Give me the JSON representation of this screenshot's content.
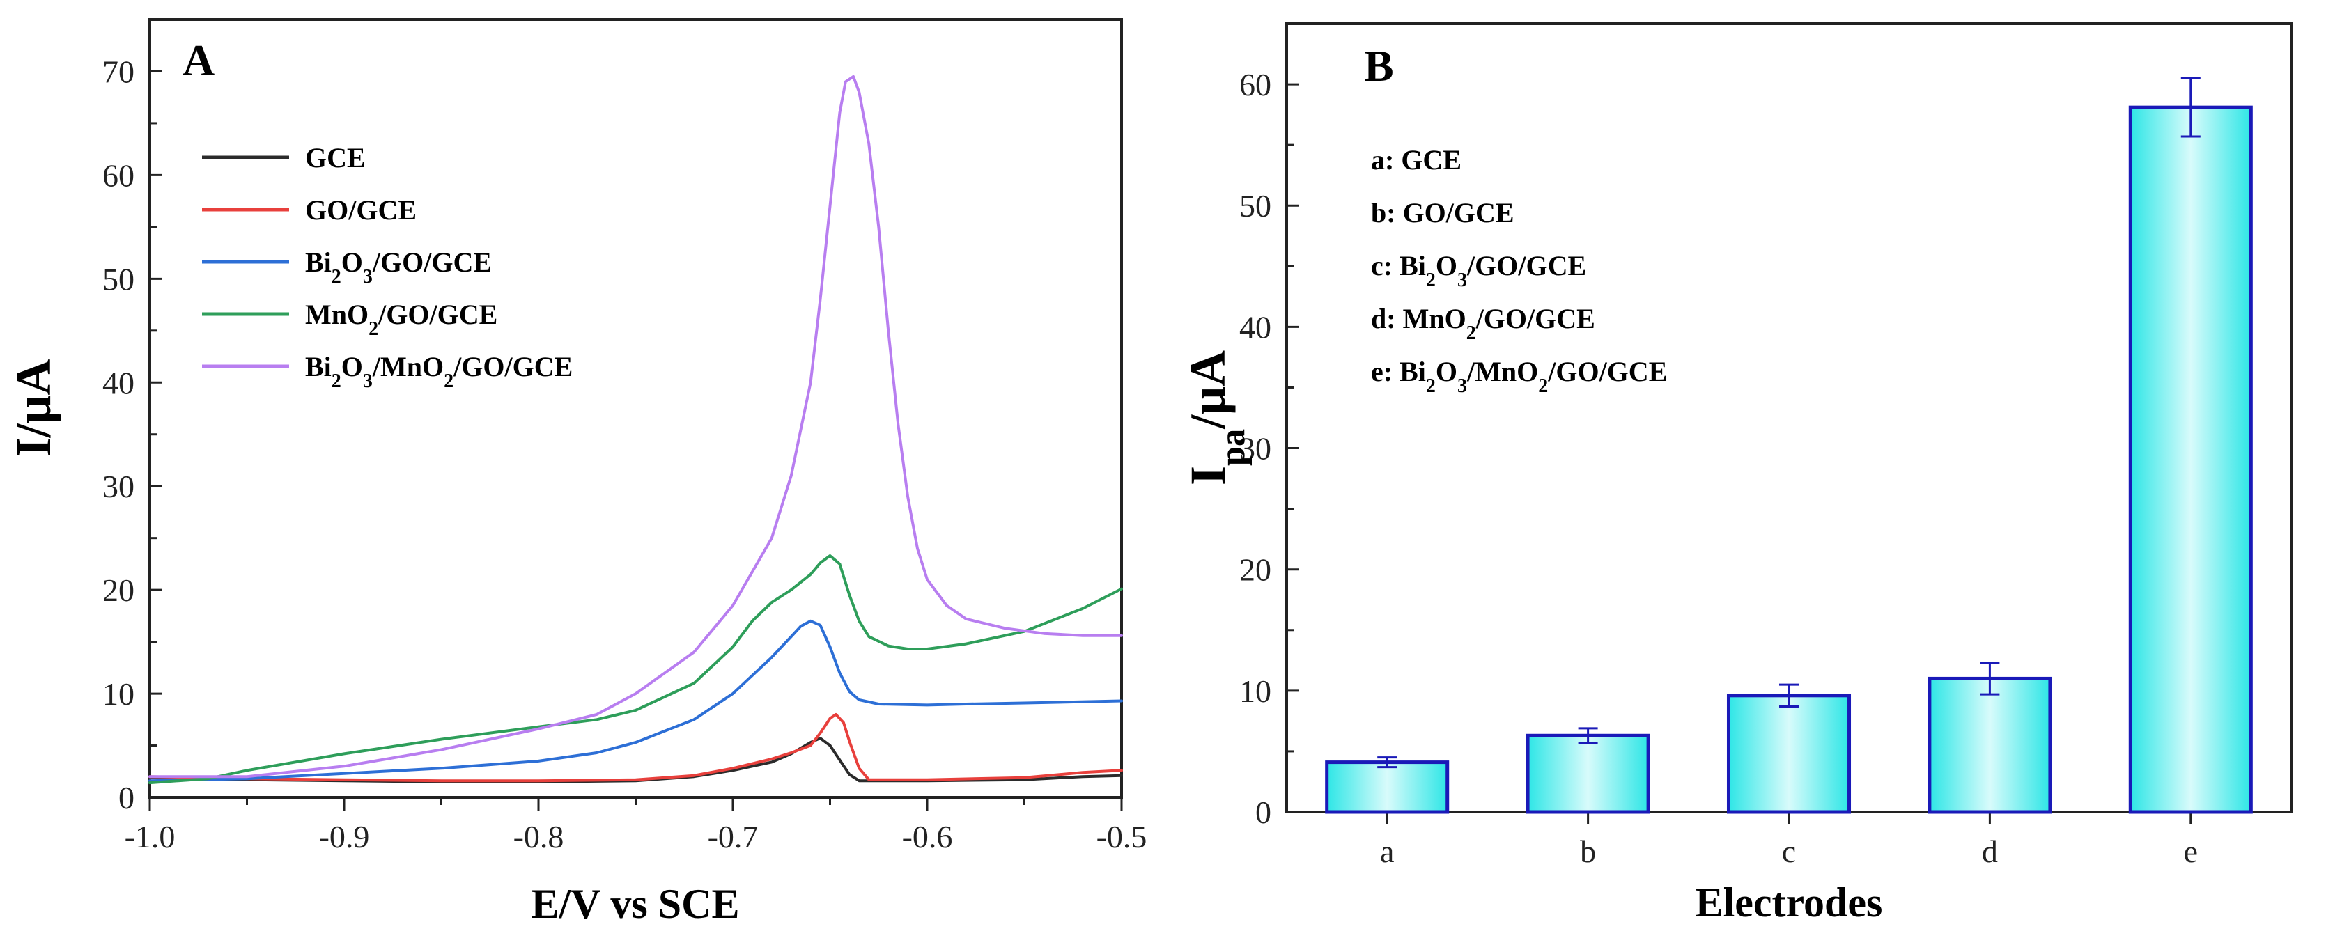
{
  "chart_data": [
    {
      "type": "line",
      "panel_label": "A",
      "xlabel": "E/V vs SCE",
      "ylabel": "I/μA",
      "xlim": [
        -1.0,
        -0.5
      ],
      "ylim": [
        0,
        75
      ],
      "x_ticks": [
        -1.0,
        -0.9,
        -0.8,
        -0.7,
        -0.6,
        -0.5
      ],
      "x_tick_labels": [
        "-1.0",
        "-0.9",
        "-0.8",
        "-0.7",
        "-0.6",
        "-0.5"
      ],
      "y_ticks": [
        0,
        10,
        20,
        30,
        40,
        50,
        60,
        70
      ],
      "y_tick_labels": [
        "0",
        "10",
        "20",
        "30",
        "40",
        "50",
        "60",
        "70"
      ],
      "legend_position": "top-left",
      "series": [
        {
          "name": "GCE",
          "legend": {
            "main": "GCE",
            "parts": [
              {
                "t": "GCE",
                "sub": false
              }
            ]
          },
          "color": "#2b2b2b",
          "points": [
            [
              -1.0,
              1.9
            ],
            [
              -0.95,
              1.7
            ],
            [
              -0.9,
              1.6
            ],
            [
              -0.85,
              1.5
            ],
            [
              -0.8,
              1.5
            ],
            [
              -0.75,
              1.6
            ],
            [
              -0.72,
              2.0
            ],
            [
              -0.7,
              2.6
            ],
            [
              -0.68,
              3.4
            ],
            [
              -0.67,
              4.2
            ],
            [
              -0.66,
              5.3
            ],
            [
              -0.655,
              5.7
            ],
            [
              -0.65,
              5.0
            ],
            [
              -0.645,
              3.6
            ],
            [
              -0.64,
              2.2
            ],
            [
              -0.635,
              1.6
            ],
            [
              -0.62,
              1.6
            ],
            [
              -0.6,
              1.6
            ],
            [
              -0.55,
              1.7
            ],
            [
              -0.52,
              2.0
            ],
            [
              -0.5,
              2.1
            ]
          ]
        },
        {
          "name": "GO/GCE",
          "legend": {
            "main": "GO/GCE",
            "parts": [
              {
                "t": "GO/GCE",
                "sub": false
              }
            ]
          },
          "color": "#e8403c",
          "points": [
            [
              -1.0,
              2.0
            ],
            [
              -0.95,
              1.8
            ],
            [
              -0.9,
              1.7
            ],
            [
              -0.85,
              1.6
            ],
            [
              -0.8,
              1.6
            ],
            [
              -0.75,
              1.7
            ],
            [
              -0.72,
              2.1
            ],
            [
              -0.7,
              2.8
            ],
            [
              -0.68,
              3.7
            ],
            [
              -0.67,
              4.3
            ],
            [
              -0.66,
              5.0
            ],
            [
              -0.655,
              6.2
            ],
            [
              -0.65,
              7.6
            ],
            [
              -0.647,
              8.0
            ],
            [
              -0.643,
              7.2
            ],
            [
              -0.64,
              5.4
            ],
            [
              -0.635,
              2.8
            ],
            [
              -0.63,
              1.7
            ],
            [
              -0.62,
              1.7
            ],
            [
              -0.6,
              1.7
            ],
            [
              -0.55,
              1.9
            ],
            [
              -0.52,
              2.4
            ],
            [
              -0.5,
              2.6
            ]
          ]
        },
        {
          "name": "Bi2O3/GO/GCE",
          "legend": {
            "main": "Bi2O3/GO/GCE",
            "parts": [
              {
                "t": "Bi",
                "sub": false
              },
              {
                "t": "2",
                "sub": true
              },
              {
                "t": "O",
                "sub": false
              },
              {
                "t": "3",
                "sub": true
              },
              {
                "t": "/GO/GCE",
                "sub": false
              }
            ]
          },
          "color": "#2d6fd6",
          "points": [
            [
              -1.0,
              1.6
            ],
            [
              -0.95,
              1.8
            ],
            [
              -0.9,
              2.3
            ],
            [
              -0.85,
              2.8
            ],
            [
              -0.8,
              3.5
            ],
            [
              -0.77,
              4.3
            ],
            [
              -0.75,
              5.3
            ],
            [
              -0.72,
              7.5
            ],
            [
              -0.7,
              10.0
            ],
            [
              -0.68,
              13.5
            ],
            [
              -0.67,
              15.5
            ],
            [
              -0.665,
              16.5
            ],
            [
              -0.66,
              17.0
            ],
            [
              -0.655,
              16.6
            ],
            [
              -0.65,
              14.5
            ],
            [
              -0.645,
              12.0
            ],
            [
              -0.64,
              10.2
            ],
            [
              -0.635,
              9.4
            ],
            [
              -0.625,
              9.0
            ],
            [
              -0.6,
              8.9
            ],
            [
              -0.58,
              9.0
            ],
            [
              -0.55,
              9.1
            ],
            [
              -0.5,
              9.3
            ]
          ]
        },
        {
          "name": "MnO2/GO/GCE",
          "legend": {
            "main": "MnO2/GO/GCE",
            "parts": [
              {
                "t": "MnO",
                "sub": false
              },
              {
                "t": "2",
                "sub": true
              },
              {
                "t": "/GO/GCE",
                "sub": false
              }
            ]
          },
          "color": "#2e9e5a",
          "points": [
            [
              -1.0,
              1.4
            ],
            [
              -0.97,
              1.8
            ],
            [
              -0.95,
              2.6
            ],
            [
              -0.9,
              4.2
            ],
            [
              -0.85,
              5.6
            ],
            [
              -0.8,
              6.8
            ],
            [
              -0.77,
              7.5
            ],
            [
              -0.75,
              8.4
            ],
            [
              -0.72,
              11.0
            ],
            [
              -0.7,
              14.5
            ],
            [
              -0.69,
              17.0
            ],
            [
              -0.68,
              18.8
            ],
            [
              -0.67,
              20.0
            ],
            [
              -0.66,
              21.5
            ],
            [
              -0.655,
              22.6
            ],
            [
              -0.65,
              23.3
            ],
            [
              -0.645,
              22.5
            ],
            [
              -0.64,
              19.5
            ],
            [
              -0.635,
              17.0
            ],
            [
              -0.63,
              15.5
            ],
            [
              -0.62,
              14.6
            ],
            [
              -0.61,
              14.3
            ],
            [
              -0.6,
              14.3
            ],
            [
              -0.58,
              14.8
            ],
            [
              -0.55,
              16.0
            ],
            [
              -0.52,
              18.2
            ],
            [
              -0.5,
              20.1
            ]
          ]
        },
        {
          "name": "Bi2O3/MnO2/GO/GCE",
          "legend": {
            "main": "Bi2O3/MnO2/GO/GCE",
            "parts": [
              {
                "t": "Bi",
                "sub": false
              },
              {
                "t": "2",
                "sub": true
              },
              {
                "t": "O",
                "sub": false
              },
              {
                "t": "3",
                "sub": true
              },
              {
                "t": "/MnO",
                "sub": false
              },
              {
                "t": "2",
                "sub": true
              },
              {
                "t": "/GO/GCE",
                "sub": false
              }
            ]
          },
          "color": "#b87ef0",
          "points": [
            [
              -1.0,
              2.0
            ],
            [
              -0.95,
              2.0
            ],
            [
              -0.9,
              3.0
            ],
            [
              -0.85,
              4.6
            ],
            [
              -0.8,
              6.6
            ],
            [
              -0.77,
              8.0
            ],
            [
              -0.75,
              10.0
            ],
            [
              -0.72,
              14.0
            ],
            [
              -0.7,
              18.5
            ],
            [
              -0.68,
              25.0
            ],
            [
              -0.67,
              31.0
            ],
            [
              -0.66,
              40.0
            ],
            [
              -0.655,
              48.0
            ],
            [
              -0.65,
              57.0
            ],
            [
              -0.645,
              66.0
            ],
            [
              -0.642,
              69.0
            ],
            [
              -0.638,
              69.5
            ],
            [
              -0.635,
              68.0
            ],
            [
              -0.63,
              63.0
            ],
            [
              -0.625,
              55.0
            ],
            [
              -0.62,
              45.0
            ],
            [
              -0.615,
              36.0
            ],
            [
              -0.61,
              29.0
            ],
            [
              -0.605,
              24.0
            ],
            [
              -0.6,
              21.0
            ],
            [
              -0.59,
              18.5
            ],
            [
              -0.58,
              17.2
            ],
            [
              -0.56,
              16.3
            ],
            [
              -0.54,
              15.8
            ],
            [
              -0.52,
              15.6
            ],
            [
              -0.5,
              15.6
            ]
          ]
        }
      ]
    },
    {
      "type": "bar",
      "panel_label": "B",
      "xlabel": "Electrodes",
      "ylabel": "Ipa/μA",
      "ylabel_parts": [
        {
          "t": "I",
          "sub": false
        },
        {
          "t": "pa",
          "sub": true
        },
        {
          "t": "/μA",
          "sub": false
        }
      ],
      "categories": [
        "a",
        "b",
        "c",
        "d",
        "e"
      ],
      "values": [
        4.1,
        6.3,
        9.6,
        11.0,
        58.1
      ],
      "errors": [
        0.4,
        0.6,
        0.9,
        1.3,
        2.4
      ],
      "ylim": [
        0,
        65
      ],
      "y_ticks": [
        0,
        10,
        20,
        30,
        40,
        50,
        60
      ],
      "y_tick_labels": [
        "0",
        "10",
        "20",
        "30",
        "40",
        "50",
        "60"
      ],
      "legend_position": "top-left",
      "bar_fill_edge": "#2ee6e6",
      "bar_fill_center": "#d8fbfb",
      "bar_stroke": "#1a1ab8",
      "legend": [
        {
          "text": "a: GCE",
          "parts": [
            {
              "t": "a: GCE",
              "sub": false
            }
          ]
        },
        {
          "text": "b: GO/GCE",
          "parts": [
            {
              "t": "b: GO/GCE",
              "sub": false
            }
          ]
        },
        {
          "text": "c: Bi2O3/GO/GCE",
          "parts": [
            {
              "t": "c: Bi",
              "sub": false
            },
            {
              "t": "2",
              "sub": true
            },
            {
              "t": "O",
              "sub": false
            },
            {
              "t": "3",
              "sub": true
            },
            {
              "t": "/GO/GCE",
              "sub": false
            }
          ]
        },
        {
          "text": "d: MnO2/GO/GCE",
          "parts": [
            {
              "t": "d: MnO",
              "sub": false
            },
            {
              "t": "2",
              "sub": true
            },
            {
              "t": "/GO/GCE",
              "sub": false
            }
          ]
        },
        {
          "text": "e: Bi2O3/MnO2/GO/GCE",
          "parts": [
            {
              "t": "e: Bi",
              "sub": false
            },
            {
              "t": "2",
              "sub": true
            },
            {
              "t": "O",
              "sub": false
            },
            {
              "t": "3",
              "sub": true
            },
            {
              "t": "/MnO",
              "sub": false
            },
            {
              "t": "2",
              "sub": true
            },
            {
              "t": "/GO/GCE",
              "sub": false
            }
          ]
        }
      ]
    }
  ]
}
